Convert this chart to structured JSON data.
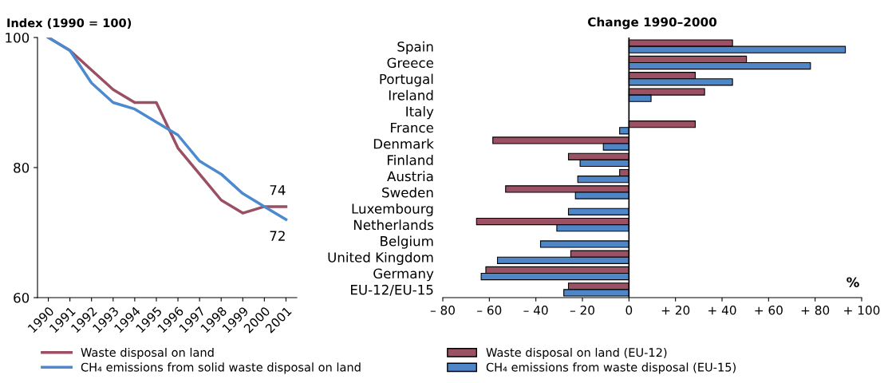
{
  "chart_data": [
    {
      "type": "line",
      "title": "Index (1990 = 100)",
      "categories": [
        "1990",
        "1991",
        "1992",
        "1993",
        "1994",
        "1995",
        "1996",
        "1997",
        "1998",
        "1999",
        "2000",
        "2001"
      ],
      "series": [
        {
          "name": "Waste disposal on land",
          "color": "#9b4f62",
          "values": [
            100,
            98,
            95,
            92,
            90,
            90,
            83,
            79,
            75,
            73,
            74,
            74
          ]
        },
        {
          "name": "CH₄ emissions from solid waste disposal on land",
          "color": "#4c8ad0",
          "values": [
            100,
            98,
            93,
            90,
            89,
            87,
            85,
            81,
            79,
            76,
            74,
            72
          ]
        }
      ],
      "ylim": [
        60,
        100
      ],
      "yticks": [
        60,
        80,
        100
      ],
      "grid": false,
      "legend": "bottom",
      "marker": "none",
      "line_style": "solid",
      "annotations": [
        {
          "text": "74",
          "x": "2001",
          "y": 74
        },
        {
          "text": "72",
          "x": "2001",
          "y": 72
        }
      ]
    },
    {
      "type": "bar",
      "orientation": "horizontal",
      "title": "Change 1990–2000",
      "categories": [
        "Spain",
        "Greece",
        "Portugal",
        "Ireland",
        "Italy",
        "France",
        "Denmark",
        "Finland",
        "Austria",
        "Sweden",
        "Luxembourg",
        "Netherlands",
        "Belgium",
        "United Kingdom",
        "Germany",
        "EU-12/EU-15"
      ],
      "series": [
        {
          "name": "Waste disposal on land (EU-12)",
          "color": "#9b5064",
          "values": [
            44.5,
            50.5,
            28.5,
            32.5,
            null,
            28.5,
            -58.5,
            -26,
            -4,
            -53,
            null,
            -65.5,
            null,
            -25,
            -61.5,
            -26
          ]
        },
        {
          "name": "CH₄ emissions from waste disposal (EU-15)",
          "color": "#4f86c8",
          "values": [
            93,
            78,
            44.5,
            9.5,
            null,
            -4,
            -11,
            -21,
            -22,
            -23,
            -26,
            -31,
            -38,
            -56.5,
            -63.5,
            -28
          ]
        }
      ],
      "xlim": [
        -80,
        100
      ],
      "xticks": [
        {
          "value": -80,
          "label": "– 80"
        },
        {
          "value": -60,
          "label": "– 60"
        },
        {
          "value": -40,
          "label": "– 40"
        },
        {
          "value": -20,
          "label": "– 20"
        },
        0,
        {
          "value": 20,
          "label": "+ 20"
        },
        {
          "value": 40,
          "label": "+ 40"
        },
        {
          "value": 60,
          "label": "+ 60"
        },
        {
          "value": 80,
          "label": "+ 80"
        },
        {
          "value": 100,
          "label": "+ 100"
        }
      ],
      "grid": false,
      "legend": "bottom",
      "annotations": [
        "%"
      ],
      "ref_lines": [
        {
          "axis": "x",
          "value": 0,
          "color": "#000000"
        }
      ]
    }
  ]
}
